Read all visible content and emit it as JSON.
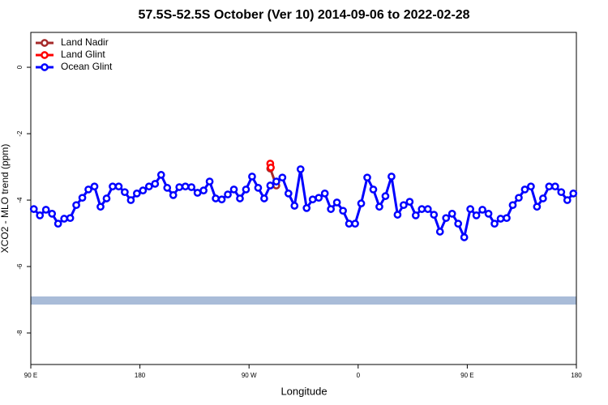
{
  "chart_data": {
    "type": "line",
    "title": "57.5S-52.5S October (Ver 10)   2014-09-06 to 2022-02-28",
    "x_label": "Longitude",
    "y_label": "XCO2 - MLO trend (ppm)",
    "xlim": [
      90,
      540
    ],
    "ylim": [
      -8.95,
      1.05
    ],
    "xticks": [
      {
        "value": 90,
        "label": "90 E"
      },
      {
        "value": 180,
        "label": "180"
      },
      {
        "value": 270,
        "label": "90 W"
      },
      {
        "value": 360,
        "label": "0"
      },
      {
        "value": 450,
        "label": "90 E"
      },
      {
        "value": 540,
        "label": "180"
      }
    ],
    "yticks": [
      0,
      -2,
      -4,
      -6,
      -8
    ],
    "legend": "top-left",
    "series": [
      {
        "name": "Land Nadir",
        "color": "#a52a2a",
        "x": [
          287.5,
          292.5
        ],
        "values": [
          -3.05,
          -3.56
        ]
      },
      {
        "name": "Land Glint",
        "color": "#ff0000",
        "x": [
          287.5,
          288
        ],
        "values": [
          -2.9,
          -3.02
        ]
      },
      {
        "name": "Ocean Glint",
        "color": "#0000ff",
        "x": [
          92.5,
          97.5,
          102.5,
          107.5,
          112.5,
          117.5,
          122.5,
          127.5,
          132.5,
          137.5,
          142.5,
          147.5,
          152.5,
          157.5,
          162.5,
          167.5,
          172.5,
          177.5,
          182.5,
          187.5,
          192.5,
          197.5,
          202.5,
          207.5,
          212.5,
          217.5,
          222.5,
          227.5,
          232.5,
          237.5,
          242.5,
          247.5,
          252.5,
          257.5,
          262.5,
          267.5,
          272.5,
          277.5,
          282.5,
          287.5,
          292.5,
          297.5,
          302.5,
          307.5,
          312.5,
          317.5,
          322.5,
          327.5,
          332.5,
          337.5,
          342.5,
          347.5,
          352.5,
          357.5,
          362.5,
          367.5,
          372.5,
          377.5,
          382.5,
          387.5,
          392.5,
          397.5,
          402.5,
          407.5,
          412.5,
          417.5,
          422.5,
          427.5,
          432.5,
          437.5,
          442.5,
          447.5,
          452.5,
          457.5,
          462.5,
          467.5,
          472.5,
          477.5,
          482.5,
          487.5,
          492.5,
          497.5,
          502.5,
          507.5,
          512.5,
          517.5,
          522.5,
          527.5,
          532.5,
          537.5
        ],
        "values": [
          -4.27,
          -4.46,
          -4.29,
          -4.41,
          -4.71,
          -4.56,
          -4.54,
          -4.15,
          -3.93,
          -3.68,
          -3.59,
          -4.2,
          -3.95,
          -3.59,
          -3.59,
          -3.76,
          -4.0,
          -3.8,
          -3.71,
          -3.59,
          -3.51,
          -3.24,
          -3.63,
          -3.85,
          -3.61,
          -3.59,
          -3.61,
          -3.78,
          -3.71,
          -3.44,
          -3.95,
          -3.98,
          -3.83,
          -3.68,
          -3.95,
          -3.68,
          -3.29,
          -3.63,
          -3.95,
          -3.56,
          -3.44,
          -3.32,
          -3.8,
          -4.17,
          -3.07,
          -4.24,
          -3.98,
          -3.93,
          -3.8,
          -4.27,
          -4.07,
          -4.32,
          -4.71,
          -4.71,
          -4.1,
          -3.32,
          -3.68,
          -4.2,
          -3.88,
          -3.29,
          -4.44,
          -4.15,
          -4.05,
          -4.46,
          -4.27,
          -4.27,
          -4.44,
          -4.95,
          -4.54,
          -4.41,
          -4.71,
          -5.12,
          -4.27,
          -4.46,
          -4.29,
          -4.41,
          -4.71,
          -4.56,
          -4.54,
          -4.15,
          -3.93,
          -3.68,
          -3.59,
          -4.2,
          -3.95,
          -3.59,
          -3.59,
          -3.76,
          -4.0,
          -3.8
        ]
      }
    ]
  }
}
